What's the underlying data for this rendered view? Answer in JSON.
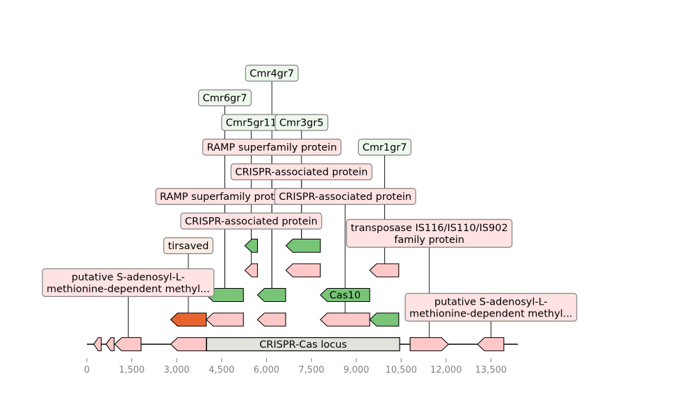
{
  "colors": {
    "gene_default": "#ffc8c8",
    "gene_cas": "#78c578",
    "gene_highlight": "#e8642f",
    "locus": "#e2e2dd",
    "label_pink": "#ffe3e3",
    "label_green": "#edf7ec",
    "label_peach": "#fbece5",
    "outline": "#000000",
    "tick_text": "#808080",
    "label_border": "#808080"
  },
  "axis": {
    "min": 0,
    "max": 14500,
    "ticks": [
      {
        "value": 0,
        "label": "0"
      },
      {
        "value": 1500,
        "label": "1,500"
      },
      {
        "value": 3000,
        "label": "3,000"
      },
      {
        "value": 4500,
        "label": "4,500"
      },
      {
        "value": 6000,
        "label": "6,000"
      },
      {
        "value": 7500,
        "label": "7,500"
      },
      {
        "value": 9000,
        "label": "9,000"
      },
      {
        "value": 10500,
        "label": "10,500"
      },
      {
        "value": 12000,
        "label": "12,000"
      },
      {
        "value": 13500,
        "label": "13,500"
      }
    ]
  },
  "backbone": {
    "start": 0,
    "end": 14400
  },
  "locus": {
    "start": 4000,
    "end": 10450,
    "label": "CRISPR-Cas locus"
  },
  "features": [
    {
      "id": "g1",
      "start": 230,
      "end": 480,
      "strand": -1,
      "level": 0,
      "color": "gene_default"
    },
    {
      "id": "g2",
      "start": 640,
      "end": 910,
      "strand": -1,
      "level": 0,
      "color": "gene_default"
    },
    {
      "id": "g3",
      "start": 930,
      "end": 1810,
      "strand": -1,
      "level": 0,
      "color": "gene_default"
    },
    {
      "id": "g4",
      "start": 2800,
      "end": 3990,
      "strand": -1,
      "level": 0,
      "color": "gene_default"
    },
    {
      "id": "g5",
      "start": 10800,
      "end": 12080,
      "strand": 1,
      "level": 0,
      "color": "gene_default"
    },
    {
      "id": "g6",
      "start": 13050,
      "end": 13930,
      "strand": -1,
      "level": 0,
      "color": "gene_default"
    },
    {
      "id": "g7",
      "start": 2800,
      "end": 3990,
      "strand": -1,
      "level": 1,
      "color": "gene_highlight"
    },
    {
      "id": "g8",
      "start": 3990,
      "end": 5230,
      "strand": -1,
      "level": 1,
      "color": "gene_default"
    },
    {
      "id": "g9",
      "start": 5700,
      "end": 6640,
      "strand": -1,
      "level": 1,
      "color": "gene_default"
    },
    {
      "id": "g10",
      "start": 7800,
      "end": 9450,
      "strand": -1,
      "level": 1,
      "color": "gene_default"
    },
    {
      "id": "g11",
      "start": 9450,
      "end": 10420,
      "strand": -1,
      "level": 1,
      "color": "gene_cas"
    },
    {
      "id": "g12",
      "start": 3990,
      "end": 5230,
      "strand": -1,
      "level": 2,
      "color": "gene_cas"
    },
    {
      "id": "g13",
      "start": 5700,
      "end": 6640,
      "strand": -1,
      "level": 2,
      "color": "gene_cas"
    },
    {
      "id": "g14",
      "start": 7800,
      "end": 9450,
      "strand": -1,
      "level": 2,
      "color": "gene_cas",
      "label": "Cas10"
    },
    {
      "id": "g15",
      "start": 5280,
      "end": 5700,
      "strand": -1,
      "level": 3,
      "color": "gene_default"
    },
    {
      "id": "g16",
      "start": 6650,
      "end": 7800,
      "strand": -1,
      "level": 3,
      "color": "gene_default"
    },
    {
      "id": "g17",
      "start": 9450,
      "end": 10420,
      "strand": -1,
      "level": 3,
      "color": "gene_default"
    },
    {
      "id": "g18",
      "start": 5280,
      "end": 5700,
      "strand": -1,
      "level": 4,
      "color": "gene_cas"
    },
    {
      "id": "g19",
      "start": 6650,
      "end": 7800,
      "strand": -1,
      "level": 4,
      "color": "gene_cas"
    }
  ],
  "annotations": [
    {
      "lines": [
        "putative S-adenosyl-L-",
        "methionine-dependent methyl..."
      ],
      "x": 1380,
      "anchor_level": 0,
      "row": 2.5,
      "fill": "label_pink"
    },
    {
      "lines": [
        "tirsaved"
      ],
      "x": 3390,
      "anchor_level": 1,
      "row": 4,
      "fill": "label_peach"
    },
    {
      "lines": [
        "CRISPR-associated protein"
      ],
      "x": 5490,
      "anchor_level": 3,
      "row": 5,
      "fill": "label_pink"
    },
    {
      "lines": [
        "RAMP superfamily protein"
      ],
      "x": 4610,
      "anchor_level": 2,
      "row": 6,
      "fill": "label_pink"
    },
    {
      "lines": [
        "CRISPR-associated protein"
      ],
      "x": 8630,
      "anchor_level": 1,
      "row": 6,
      "fill": "label_pink"
    },
    {
      "lines": [
        "CRISPR-associated protein"
      ],
      "x": 7170,
      "anchor_level": 4,
      "row": 7,
      "fill": "label_pink"
    },
    {
      "lines": [
        "RAMP superfamily protein"
      ],
      "x": 6180,
      "anchor_level": 2,
      "row": 8,
      "fill": "label_pink"
    },
    {
      "lines": [
        "Cmr5gr11"
      ],
      "x": 5490,
      "anchor_level": 4,
      "row": 9,
      "fill": "label_green"
    },
    {
      "lines": [
        "Cmr3gr5"
      ],
      "x": 7170,
      "anchor_level": 4,
      "row": 9,
      "fill": "label_green"
    },
    {
      "lines": [
        "Cmr1gr7"
      ],
      "x": 9950,
      "anchor_level": 3,
      "row": 8,
      "fill": "label_green"
    },
    {
      "lines": [
        "Cmr6gr7"
      ],
      "x": 4610,
      "anchor_level": 2,
      "row": 10,
      "fill": "label_green"
    },
    {
      "lines": [
        "Cmr4gr7"
      ],
      "x": 6180,
      "anchor_level": 2,
      "row": 11,
      "fill": "label_green"
    },
    {
      "lines": [
        "transposase IS116/IS110/IS902",
        "family protein"
      ],
      "x": 11440,
      "anchor_level": 0,
      "row": 4.5,
      "fill": "label_pink"
    },
    {
      "lines": [
        "putative S-adenosyl-L-",
        "methionine-dependent methyl..."
      ],
      "x": 13500,
      "anchor_level": 0,
      "row": 1.5,
      "fill": "label_pink"
    }
  ]
}
